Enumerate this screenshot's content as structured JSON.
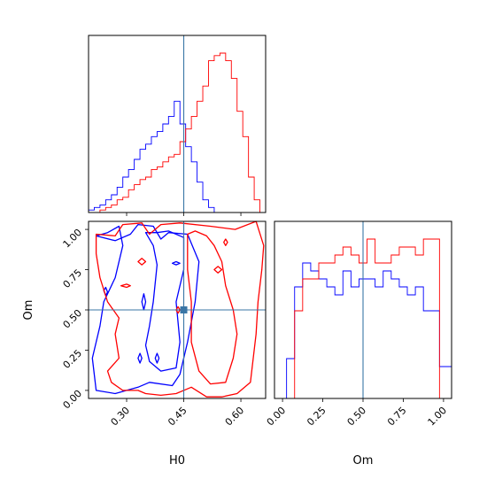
{
  "colors": {
    "series_a": "#0000ff",
    "series_b": "#ff0000",
    "truth": "#3a76a6"
  },
  "chart_data": {
    "type": "corner",
    "parameters": [
      "H0",
      "Om"
    ],
    "truth": {
      "H0": 0.45,
      "Om": 0.5
    },
    "axes": {
      "H0": {
        "label": "H0",
        "range": [
          0.2,
          0.665
        ],
        "ticks": [
          0.3,
          0.45,
          0.6
        ],
        "tick_labels": [
          "0.30",
          "0.45",
          "0.60"
        ]
      },
      "Om": {
        "label": "Om",
        "range": [
          -0.05,
          1.05
        ],
        "ticks": [
          0.0,
          0.25,
          0.5,
          0.75,
          1.0
        ],
        "tick_labels": [
          "0.00",
          "0.25",
          "0.50",
          "0.75",
          "1.00"
        ]
      }
    },
    "hist_H0": {
      "edges": [
        0.2,
        0.215,
        0.23,
        0.245,
        0.26,
        0.275,
        0.29,
        0.305,
        0.32,
        0.335,
        0.35,
        0.365,
        0.38,
        0.395,
        0.41,
        0.425,
        0.44,
        0.455,
        0.47,
        0.485,
        0.5,
        0.515,
        0.53,
        0.545,
        0.56,
        0.575,
        0.59,
        0.605,
        0.62,
        0.635,
        0.65,
        0.665
      ],
      "series": [
        {
          "values": [
            1,
            2,
            3,
            5,
            7,
            10,
            14,
            17,
            21,
            25,
            27,
            30,
            32,
            35,
            38,
            44,
            35,
            26,
            20,
            12,
            5,
            2,
            0,
            0,
            0,
            0,
            0,
            0,
            0,
            0,
            0
          ]
        },
        {
          "values": [
            0,
            0,
            1,
            2,
            3,
            5,
            6,
            9,
            11,
            13,
            14,
            17,
            18,
            20,
            22,
            23,
            28,
            33,
            38,
            44,
            50,
            60,
            62,
            63,
            60,
            53,
            40,
            30,
            14,
            5,
            0
          ]
        }
      ]
    },
    "hist_Om": {
      "edges": [
        -0.05,
        -0.025,
        0.0,
        0.025,
        0.05,
        0.075,
        0.1,
        0.125,
        0.15,
        0.175,
        0.2,
        0.225,
        0.25,
        0.275,
        0.3,
        0.325,
        0.35,
        0.375,
        0.4,
        0.425,
        0.45,
        0.475,
        0.5,
        0.525,
        0.55,
        0.575,
        0.6,
        0.625,
        0.65,
        0.675,
        0.7,
        0.725,
        0.75,
        0.775,
        0.8,
        0.825,
        0.85,
        0.875,
        0.9,
        0.925,
        0.95,
        0.975,
        1.0,
        1.025,
        1.05
      ],
      "series": [
        {
          "values": [
            0,
            0,
            0,
            5,
            5,
            14,
            14,
            17,
            17,
            16,
            16,
            15,
            15,
            14,
            14,
            13,
            13,
            16,
            16,
            14,
            14,
            15,
            15,
            15,
            15,
            14,
            14,
            16,
            16,
            15,
            15,
            14,
            14,
            13,
            13,
            14,
            14,
            11,
            11,
            11,
            11,
            4,
            4,
            4
          ]
        },
        {
          "values": [
            0,
            0,
            0,
            0,
            0,
            11,
            11,
            15,
            15,
            15,
            15,
            17,
            17,
            17,
            17,
            18,
            18,
            19,
            19,
            18,
            18,
            17,
            17,
            20,
            20,
            17,
            17,
            17,
            17,
            18,
            18,
            19,
            19,
            19,
            19,
            18,
            18,
            20,
            20,
            20,
            20,
            0,
            0,
            0
          ]
        }
      ]
    },
    "contours": {
      "series_a": [
        [
          [
            0.22,
            0.96
          ],
          [
            0.25,
            0.98
          ],
          [
            0.28,
            1.02
          ],
          [
            0.29,
            0.9
          ],
          [
            0.27,
            0.7
          ],
          [
            0.24,
            0.55
          ],
          [
            0.23,
            0.4
          ],
          [
            0.21,
            0.2
          ],
          [
            0.22,
            0.0
          ],
          [
            0.27,
            -0.02
          ],
          [
            0.33,
            0.02
          ],
          [
            0.36,
            0.05
          ],
          [
            0.42,
            0.03
          ],
          [
            0.44,
            0.1
          ],
          [
            0.46,
            0.3
          ],
          [
            0.48,
            0.55
          ],
          [
            0.49,
            0.8
          ],
          [
            0.46,
            0.97
          ],
          [
            0.41,
            0.98
          ],
          [
            0.39,
            0.94
          ],
          [
            0.37,
            1.02
          ],
          [
            0.33,
            1.03
          ],
          [
            0.31,
            0.97
          ],
          [
            0.27,
            0.93
          ],
          [
            0.22,
            0.96
          ]
        ],
        [
          [
            0.35,
            0.98
          ],
          [
            0.37,
            0.9
          ],
          [
            0.38,
            0.78
          ],
          [
            0.37,
            0.55
          ],
          [
            0.36,
            0.4
          ],
          [
            0.35,
            0.28
          ],
          [
            0.36,
            0.18
          ],
          [
            0.39,
            0.12
          ],
          [
            0.43,
            0.14
          ],
          [
            0.44,
            0.3
          ],
          [
            0.43,
            0.55
          ],
          [
            0.45,
            0.75
          ],
          [
            0.45,
            0.95
          ],
          [
            0.41,
            0.99
          ],
          [
            0.38,
            0.98
          ],
          [
            0.35,
            0.98
          ]
        ],
        [
          [
            0.24,
            0.62
          ],
          [
            0.245,
            0.59
          ],
          [
            0.25,
            0.61
          ],
          [
            0.245,
            0.64
          ],
          [
            0.24,
            0.62
          ]
        ],
        [
          [
            0.34,
            0.55
          ],
          [
            0.345,
            0.5
          ],
          [
            0.35,
            0.55
          ],
          [
            0.345,
            0.6
          ],
          [
            0.34,
            0.55
          ]
        ],
        [
          [
            0.375,
            0.2
          ],
          [
            0.38,
            0.17
          ],
          [
            0.385,
            0.2
          ],
          [
            0.38,
            0.23
          ],
          [
            0.375,
            0.2
          ]
        ],
        [
          [
            0.33,
            0.2
          ],
          [
            0.335,
            0.17
          ],
          [
            0.34,
            0.2
          ],
          [
            0.335,
            0.23
          ],
          [
            0.33,
            0.2
          ]
        ],
        [
          [
            0.42,
            0.79
          ],
          [
            0.43,
            0.78
          ],
          [
            0.44,
            0.79
          ],
          [
            0.43,
            0.8
          ],
          [
            0.42,
            0.79
          ]
        ]
      ],
      "series_b": [
        [
          [
            0.22,
            0.97
          ],
          [
            0.27,
            0.96
          ],
          [
            0.29,
            1.03
          ],
          [
            0.34,
            1.04
          ],
          [
            0.36,
            0.97
          ],
          [
            0.39,
            1.03
          ],
          [
            0.44,
            1.04
          ],
          [
            0.52,
            1.02
          ],
          [
            0.585,
            1.0
          ],
          [
            0.64,
            1.05
          ],
          [
            0.66,
            0.9
          ],
          [
            0.655,
            0.75
          ],
          [
            0.645,
            0.55
          ],
          [
            0.64,
            0.35
          ],
          [
            0.625,
            0.05
          ],
          [
            0.59,
            -0.02
          ],
          [
            0.55,
            -0.04
          ],
          [
            0.51,
            -0.04
          ],
          [
            0.47,
            0.02
          ],
          [
            0.43,
            -0.02
          ],
          [
            0.39,
            -0.03
          ],
          [
            0.35,
            -0.02
          ],
          [
            0.33,
            0.0
          ],
          [
            0.29,
            0.0
          ],
          [
            0.26,
            0.05
          ],
          [
            0.25,
            0.12
          ],
          [
            0.28,
            0.2
          ],
          [
            0.27,
            0.35
          ],
          [
            0.28,
            0.45
          ],
          [
            0.25,
            0.55
          ],
          [
            0.23,
            0.7
          ],
          [
            0.22,
            0.85
          ],
          [
            0.22,
            0.97
          ]
        ],
        [
          [
            0.48,
            0.99
          ],
          [
            0.51,
            0.96
          ],
          [
            0.53,
            0.9
          ],
          [
            0.55,
            0.8
          ],
          [
            0.56,
            0.65
          ],
          [
            0.58,
            0.5
          ],
          [
            0.59,
            0.35
          ],
          [
            0.58,
            0.2
          ],
          [
            0.56,
            0.05
          ],
          [
            0.52,
            0.04
          ],
          [
            0.49,
            0.12
          ],
          [
            0.47,
            0.3
          ],
          [
            0.47,
            0.55
          ],
          [
            0.46,
            0.75
          ],
          [
            0.46,
            0.97
          ],
          [
            0.48,
            0.99
          ]
        ],
        [
          [
            0.285,
            0.65
          ],
          [
            0.3,
            0.64
          ],
          [
            0.31,
            0.65
          ],
          [
            0.3,
            0.66
          ],
          [
            0.285,
            0.65
          ]
        ],
        [
          [
            0.33,
            0.8
          ],
          [
            0.34,
            0.78
          ],
          [
            0.35,
            0.8
          ],
          [
            0.34,
            0.82
          ],
          [
            0.33,
            0.8
          ]
        ],
        [
          [
            0.53,
            0.75
          ],
          [
            0.54,
            0.73
          ],
          [
            0.55,
            0.75
          ],
          [
            0.54,
            0.77
          ],
          [
            0.53,
            0.75
          ]
        ],
        [
          [
            0.555,
            0.92
          ],
          [
            0.56,
            0.9
          ],
          [
            0.565,
            0.92
          ],
          [
            0.56,
            0.94
          ],
          [
            0.555,
            0.92
          ]
        ],
        [
          [
            0.43,
            0.5
          ],
          [
            0.435,
            0.48
          ],
          [
            0.44,
            0.5
          ],
          [
            0.435,
            0.52
          ],
          [
            0.43,
            0.5
          ]
        ]
      ]
    }
  }
}
